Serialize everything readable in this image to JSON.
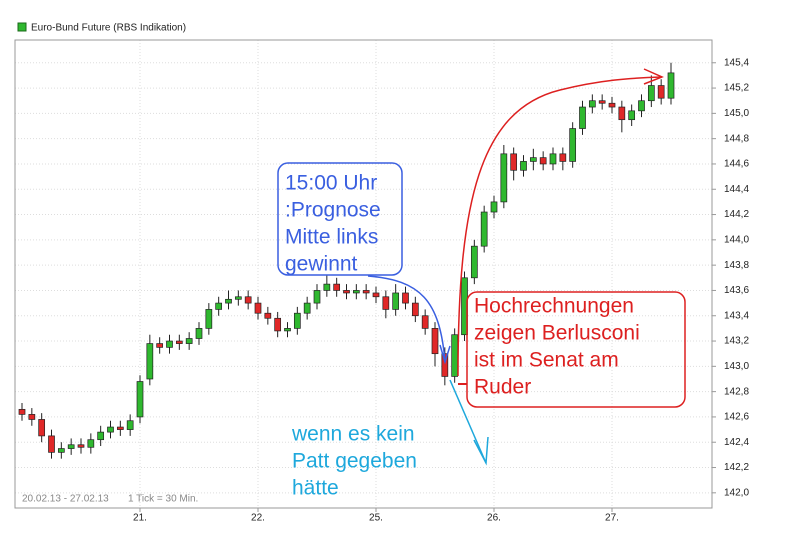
{
  "chart_data": {
    "type": "candlestick",
    "categories": [
      null,
      null,
      null,
      null,
      null,
      null,
      null,
      null,
      null,
      null,
      null,
      null,
      "21.",
      null,
      null,
      null,
      null,
      null,
      null,
      null,
      null,
      null,
      null,
      null,
      "22.",
      null,
      null,
      null,
      null,
      null,
      null,
      null,
      null,
      null,
      null,
      null,
      "25.",
      null,
      null,
      null,
      null,
      null,
      null,
      null,
      null,
      null,
      null,
      null,
      "26.",
      null,
      null,
      null,
      null,
      null,
      null,
      null,
      null,
      null,
      null,
      null,
      "27.",
      null,
      null,
      null,
      null,
      null,
      null
    ],
    "series": [
      {
        "name": "Euro-Bund Future (RBS Indikation)",
        "color": "#2fb82f",
        "down_color": "#e02828",
        "open": [
          142.66,
          142.62,
          142.58,
          142.45,
          142.32,
          142.35,
          142.38,
          142.36,
          142.42,
          142.48,
          142.52,
          142.5,
          142.6,
          142.9,
          143.18,
          143.15,
          143.2,
          143.18,
          143.22,
          143.3,
          143.45,
          143.5,
          143.53,
          143.55,
          143.5,
          143.42,
          143.38,
          143.28,
          143.3,
          143.42,
          143.5,
          143.6,
          143.65,
          143.6,
          143.58,
          143.6,
          143.58,
          143.55,
          143.45,
          143.58,
          143.5,
          143.4,
          143.3,
          143.1,
          142.92,
          143.25,
          143.7,
          143.95,
          144.22,
          144.3,
          144.68,
          144.55,
          144.62,
          144.65,
          144.6,
          144.68,
          144.62,
          144.88,
          145.05,
          145.1,
          145.08,
          145.05,
          144.95,
          145.02,
          145.1,
          145.22,
          145.12
        ],
        "high": [
          142.71,
          142.67,
          142.63,
          142.5,
          142.4,
          142.43,
          142.43,
          142.47,
          142.53,
          142.57,
          142.57,
          142.62,
          142.93,
          143.25,
          143.23,
          143.25,
          143.25,
          143.27,
          143.35,
          143.5,
          143.55,
          143.6,
          143.6,
          143.6,
          143.55,
          143.47,
          143.43,
          143.35,
          143.47,
          143.55,
          143.65,
          143.72,
          143.7,
          143.65,
          143.65,
          143.65,
          143.63,
          143.6,
          143.65,
          143.63,
          143.55,
          143.45,
          143.35,
          143.15,
          143.3,
          143.75,
          144.0,
          144.27,
          144.35,
          144.75,
          144.73,
          144.67,
          144.72,
          144.7,
          144.73,
          144.73,
          144.93,
          145.1,
          145.15,
          145.15,
          145.13,
          145.1,
          145.07,
          145.15,
          145.3,
          145.27,
          145.4
        ],
        "low": [
          142.57,
          142.53,
          142.4,
          142.27,
          142.27,
          142.3,
          142.31,
          142.31,
          142.37,
          142.43,
          142.45,
          142.45,
          142.55,
          142.85,
          143.1,
          143.1,
          143.13,
          143.13,
          143.17,
          143.25,
          143.4,
          143.45,
          143.48,
          143.45,
          143.37,
          143.33,
          143.23,
          143.23,
          143.25,
          143.37,
          143.45,
          143.55,
          143.55,
          143.53,
          143.53,
          143.53,
          143.5,
          143.38,
          143.4,
          143.45,
          143.35,
          143.25,
          143.0,
          142.85,
          142.87,
          143.2,
          143.65,
          143.9,
          144.17,
          144.25,
          144.47,
          144.5,
          144.55,
          144.55,
          144.55,
          144.55,
          144.57,
          144.83,
          145.0,
          145.03,
          145.0,
          144.85,
          144.9,
          144.97,
          145.05,
          145.07,
          145.07
        ],
        "close": [
          142.62,
          142.58,
          142.45,
          142.32,
          142.35,
          142.38,
          142.36,
          142.42,
          142.48,
          142.52,
          142.5,
          142.57,
          142.88,
          143.18,
          143.15,
          143.2,
          143.18,
          143.22,
          143.3,
          143.45,
          143.5,
          143.53,
          143.55,
          143.5,
          143.42,
          143.38,
          143.28,
          143.3,
          143.42,
          143.5,
          143.6,
          143.65,
          143.6,
          143.58,
          143.6,
          143.58,
          143.55,
          143.45,
          143.58,
          143.5,
          143.4,
          143.3,
          143.1,
          142.92,
          143.25,
          143.7,
          143.95,
          144.22,
          144.3,
          144.68,
          144.55,
          144.62,
          144.65,
          144.6,
          144.68,
          144.62,
          144.88,
          145.05,
          145.1,
          145.08,
          145.05,
          144.95,
          145.02,
          145.1,
          145.22,
          145.12,
          145.32
        ]
      }
    ],
    "ylim": [
      141.88,
      145.58
    ],
    "yticks": [
      {
        "value": 142.0,
        "label": "142,0"
      },
      {
        "value": 142.2,
        "label": "142,2"
      },
      {
        "value": 142.4,
        "label": "142,4"
      },
      {
        "value": 142.6,
        "label": "142,6"
      },
      {
        "value": 142.8,
        "label": "142,8"
      },
      {
        "value": 143.0,
        "label": "143,0"
      },
      {
        "value": 143.2,
        "label": "143,2"
      },
      {
        "value": 143.4,
        "label": "143,4"
      },
      {
        "value": 143.6,
        "label": "143,6"
      },
      {
        "value": 143.8,
        "label": "143,8"
      },
      {
        "value": 144.0,
        "label": "144,0"
      },
      {
        "value": 144.2,
        "label": "144,2"
      },
      {
        "value": 144.4,
        "label": "144,4"
      },
      {
        "value": 144.6,
        "label": "144,6"
      },
      {
        "value": 144.8,
        "label": "144,8"
      },
      {
        "value": 145.0,
        "label": "145,0"
      },
      {
        "value": 145.2,
        "label": "145,2"
      },
      {
        "value": 145.4,
        "label": "145,4"
      }
    ],
    "grid": true,
    "footer": [
      "20.02.13 - 27.02.13",
      "1 Tick = 30 Min."
    ],
    "annotations": [
      {
        "color": "#3a5fe0",
        "lines": [
          "15:00 Uhr",
          ":Prognose",
          "Mitte links",
          "gewinnt"
        ]
      },
      {
        "color": "#dd2020",
        "lines": [
          "Hochrechnungen",
          "zeigen Berlusconi",
          "ist im Senat am",
          "Ruder"
        ]
      },
      {
        "color": "#1ea8dc",
        "lines": [
          "wenn es kein",
          "Patt gegeben",
          "hätte"
        ]
      }
    ]
  }
}
